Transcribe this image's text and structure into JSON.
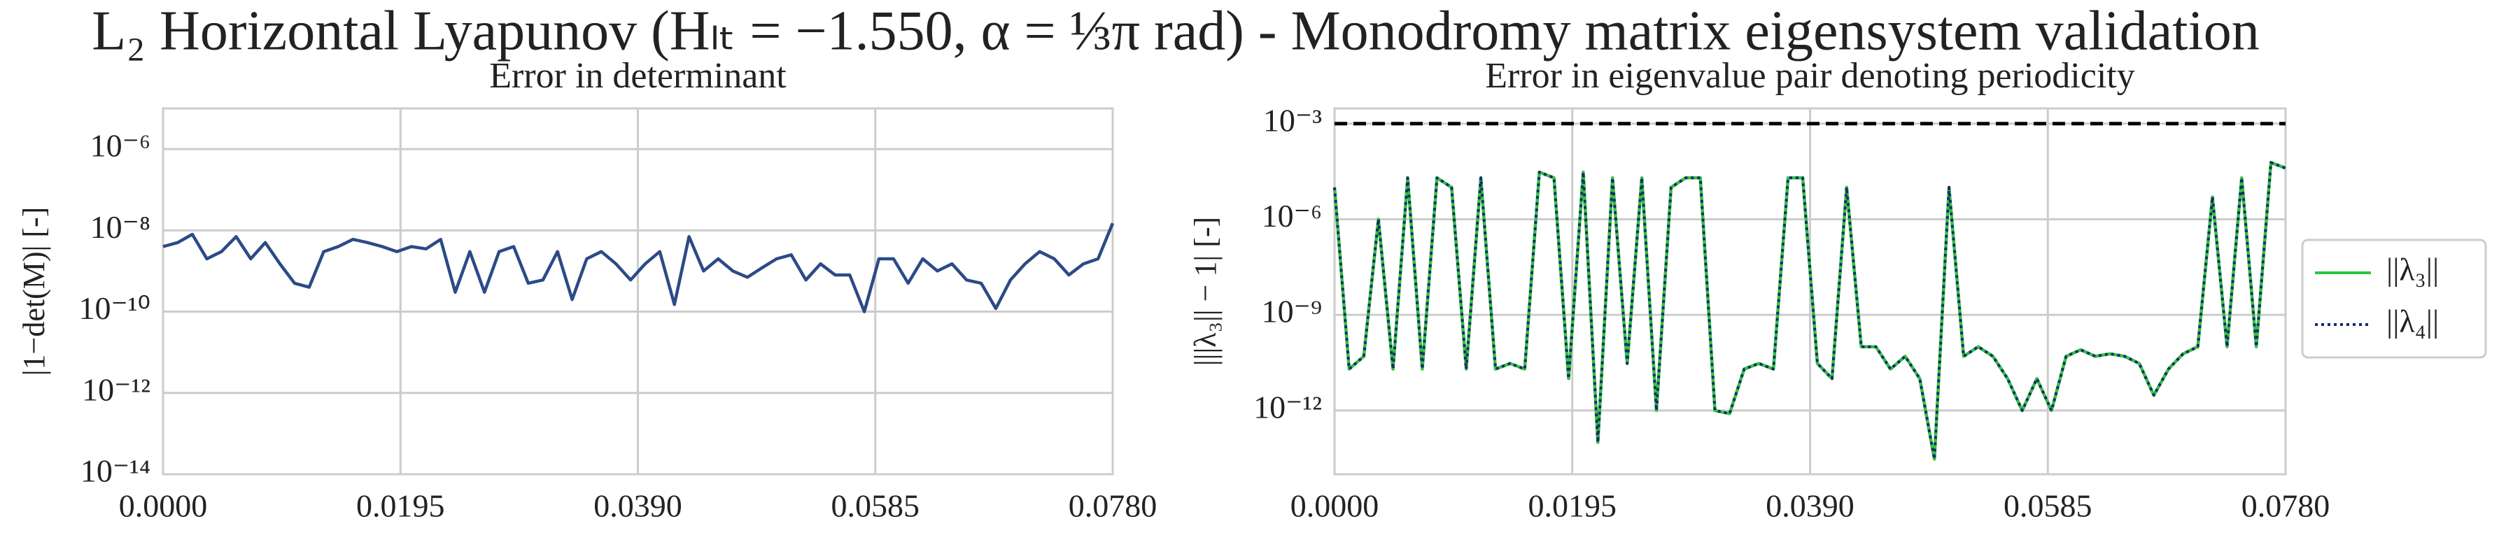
{
  "title": "L₂ Horizontal Lyapunov (Hₗₜ = −1.550, α = ⅓π rad) - Monodromy matrix eigensystem validation",
  "chart_data": [
    {
      "type": "line",
      "title": "Error in determinant",
      "y_label": "|1−det(M)| [-]",
      "yscale": "log",
      "grid": true,
      "xlim": [
        0,
        0.078
      ],
      "xticks": [
        {
          "value": 0,
          "label": "0.0000"
        },
        {
          "value": 0.0195,
          "label": "0.0195"
        },
        {
          "value": 0.039,
          "label": "0.0390"
        },
        {
          "value": 0.0585,
          "label": "0.0585"
        },
        {
          "value": 0.078,
          "label": "0.0780"
        }
      ],
      "ylim": [
        1e-14,
        1e-05
      ],
      "yticks": [
        {
          "value": 1e-14,
          "label": "10⁻¹⁴"
        },
        {
          "value": 1e-12,
          "label": "10⁻¹²"
        },
        {
          "value": 1e-10,
          "label": "10⁻¹⁰"
        },
        {
          "value": 1e-08,
          "label": "10⁻⁸"
        },
        {
          "value": 1e-06,
          "label": "10⁻⁶"
        }
      ],
      "x": [
        0,
        0.0012,
        0.0024,
        0.0036,
        0.0048,
        0.006,
        0.0072,
        0.0084,
        0.0096,
        0.0108,
        0.012,
        0.0132,
        0.0144,
        0.0156,
        0.0168,
        0.018,
        0.0192,
        0.0204,
        0.0216,
        0.0228,
        0.024,
        0.0252,
        0.0264,
        0.0276,
        0.0288,
        0.03,
        0.0312,
        0.0324,
        0.0336,
        0.0348,
        0.036,
        0.0372,
        0.0384,
        0.0396,
        0.0408,
        0.042,
        0.0432,
        0.0444,
        0.0456,
        0.0468,
        0.048,
        0.0492,
        0.0504,
        0.0516,
        0.0528,
        0.054,
        0.0552,
        0.0564,
        0.0576,
        0.0588,
        0.06,
        0.0612,
        0.0624,
        0.0636,
        0.0648,
        0.066,
        0.0672,
        0.0684,
        0.0696,
        0.0708,
        0.072,
        0.0732,
        0.0744,
        0.0756,
        0.0768,
        0.078
      ],
      "series": [
        {
          "color": "#2c4a87",
          "linestyle": "solid",
          "values": [
            4e-09,
            5e-09,
            8e-09,
            2e-09,
            3e-09,
            7e-09,
            2e-09,
            5e-09,
            1.5e-09,
            5e-10,
            4e-10,
            3e-09,
            4e-09,
            6e-09,
            5e-09,
            4e-09,
            3e-09,
            4e-09,
            3.5e-09,
            6e-09,
            3e-10,
            3e-09,
            3e-10,
            3e-09,
            4e-09,
            5e-10,
            6e-10,
            3e-09,
            2e-10,
            2e-09,
            3e-09,
            1.5e-09,
            6e-10,
            1.5e-09,
            3e-09,
            1.5e-10,
            7e-09,
            1e-09,
            2e-09,
            1e-09,
            7e-10,
            1.2e-09,
            2e-09,
            2.5e-09,
            6e-10,
            1.5e-09,
            8e-10,
            8e-10,
            1e-10,
            2e-09,
            2e-09,
            5e-10,
            2e-09,
            1e-09,
            1.5e-09,
            6e-10,
            5e-10,
            1.2e-10,
            6e-10,
            1.5e-09,
            3e-09,
            2e-09,
            8e-10,
            1.5e-09,
            2e-09,
            1.5e-08
          ]
        }
      ]
    },
    {
      "type": "line",
      "title": "Error in eigenvalue pair denoting periodicity",
      "y_label": "|||λ₃|| − 1| [-]",
      "yscale": "log",
      "grid": true,
      "legend": "outside-right",
      "reference_line": {
        "value": 0.001,
        "color": "#000000",
        "linestyle": "dashed"
      },
      "xlim": [
        0,
        0.078
      ],
      "xticks": [
        {
          "value": 0,
          "label": "0.0000"
        },
        {
          "value": 0.0195,
          "label": "0.0195"
        },
        {
          "value": 0.039,
          "label": "0.0390"
        },
        {
          "value": 0.0585,
          "label": "0.0585"
        },
        {
          "value": 0.078,
          "label": "0.0780"
        }
      ],
      "ylim": [
        1e-14,
        0.003
      ],
      "yticks": [
        {
          "value": 1e-12,
          "label": "10⁻¹²"
        },
        {
          "value": 1e-09,
          "label": "10⁻⁹"
        },
        {
          "value": 1e-06,
          "label": "10⁻⁶"
        },
        {
          "value": 0.001,
          "label": "10⁻³"
        }
      ],
      "x": [
        0,
        0.0012,
        0.0024,
        0.0036,
        0.0048,
        0.006,
        0.0072,
        0.0084,
        0.0096,
        0.0108,
        0.012,
        0.0132,
        0.0144,
        0.0156,
        0.0168,
        0.018,
        0.0192,
        0.0204,
        0.0216,
        0.0228,
        0.024,
        0.0252,
        0.0264,
        0.0276,
        0.0288,
        0.03,
        0.0312,
        0.0324,
        0.0336,
        0.0348,
        0.036,
        0.0372,
        0.0384,
        0.0396,
        0.0408,
        0.042,
        0.0432,
        0.0444,
        0.0456,
        0.0468,
        0.048,
        0.0492,
        0.0504,
        0.0516,
        0.0528,
        0.054,
        0.0552,
        0.0564,
        0.0576,
        0.0588,
        0.06,
        0.0612,
        0.0624,
        0.0636,
        0.0648,
        0.066,
        0.0672,
        0.0684,
        0.0696,
        0.0708,
        0.072,
        0.0732,
        0.0744,
        0.0756,
        0.0768,
        0.078
      ],
      "series": [
        {
          "name": "||λ₃||",
          "color": "#2ec43b",
          "linestyle": "solid",
          "values": [
            1e-05,
            2e-11,
            5e-11,
            1e-06,
            2e-11,
            2e-05,
            2e-11,
            2e-05,
            1e-05,
            2e-11,
            2e-05,
            2e-11,
            3e-11,
            2e-11,
            3e-05,
            2e-05,
            1e-11,
            3e-05,
            1e-13,
            2e-05,
            3e-11,
            2e-05,
            1e-12,
            1e-05,
            2e-05,
            2e-05,
            1e-12,
            8e-13,
            2e-11,
            3e-11,
            2e-11,
            2e-05,
            2e-05,
            3e-11,
            1e-11,
            1e-05,
            1e-10,
            1e-10,
            2e-11,
            5e-11,
            1e-11,
            3e-14,
            1e-05,
            5e-11,
            1e-10,
            5e-11,
            1e-11,
            1e-12,
            1e-11,
            1e-12,
            5e-11,
            8e-11,
            5e-11,
            6e-11,
            5e-11,
            3e-11,
            3e-12,
            2e-11,
            6e-11,
            1e-10,
            5e-06,
            1e-10,
            2e-05,
            1e-10,
            6e-05,
            4e-05
          ]
        },
        {
          "name": "||λ₄||",
          "color": "#1a2a6c",
          "linestyle": "dotted",
          "values": [
            1e-05,
            2e-11,
            5e-11,
            1e-06,
            2e-11,
            2e-05,
            2e-11,
            2e-05,
            1e-05,
            2e-11,
            2e-05,
            2e-11,
            3e-11,
            2e-11,
            3e-05,
            2e-05,
            1e-11,
            3e-05,
            1e-13,
            2e-05,
            3e-11,
            2e-05,
            1e-12,
            1e-05,
            2e-05,
            2e-05,
            1e-12,
            8e-13,
            2e-11,
            3e-11,
            2e-11,
            2e-05,
            2e-05,
            3e-11,
            1e-11,
            1e-05,
            1e-10,
            1e-10,
            2e-11,
            5e-11,
            1e-11,
            3e-14,
            1e-05,
            5e-11,
            1e-10,
            5e-11,
            1e-11,
            1e-12,
            1e-11,
            1e-12,
            5e-11,
            8e-11,
            5e-11,
            6e-11,
            5e-11,
            3e-11,
            3e-12,
            2e-11,
            6e-11,
            1e-10,
            5e-06,
            1e-10,
            2e-05,
            1e-10,
            6e-05,
            4e-05
          ]
        }
      ]
    }
  ]
}
